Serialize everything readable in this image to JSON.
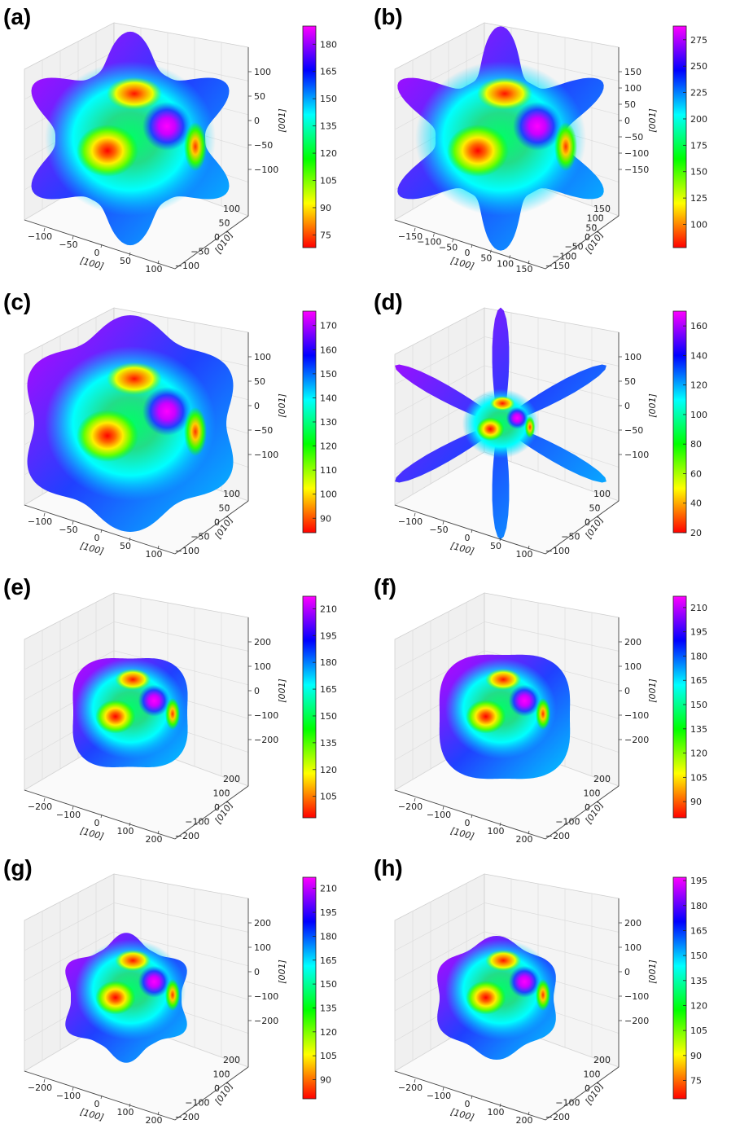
{
  "colormap": [
    "#ff0000",
    "#ffff00",
    "#00ff00",
    "#00ffff",
    "#0000ff",
    "#ff00ff"
  ],
  "chart_data": [
    {
      "label": "(a)",
      "type": "3d-surface",
      "xlabel": "[100]",
      "ylabel": "[010]",
      "zlabel": "[001]",
      "x_ticks": [
        "−100",
        "−50",
        "0",
        "50",
        "100"
      ],
      "y_ticks": [
        "−100",
        "−50",
        "0",
        "50",
        "100"
      ],
      "z_ticks": [
        "100",
        "50",
        "0",
        "−50",
        "−100"
      ],
      "colorbar_ticks": [
        "180",
        "165",
        "150",
        "135",
        "120",
        "105",
        "90",
        "75"
      ],
      "colorbar_range": [
        68,
        190
      ]
    },
    {
      "label": "(b)",
      "type": "3d-surface",
      "xlabel": "[100]",
      "ylabel": "[010]",
      "zlabel": "[001]",
      "x_ticks": [
        "−150",
        "−100",
        "−50",
        "0",
        "50",
        "100",
        "150"
      ],
      "y_ticks": [
        "−150",
        "−100",
        "−50",
        "0",
        "50",
        "100",
        "150"
      ],
      "z_ticks": [
        "150",
        "100",
        "50",
        "0",
        "−50",
        "−100",
        "−150"
      ],
      "colorbar_ticks": [
        "275",
        "250",
        "225",
        "200",
        "175",
        "150",
        "125",
        "100"
      ],
      "colorbar_range": [
        78,
        288
      ]
    },
    {
      "label": "(c)",
      "type": "3d-surface",
      "xlabel": "[100]",
      "ylabel": "[010]",
      "zlabel": "[001]",
      "x_ticks": [
        "−100",
        "−50",
        "0",
        "50",
        "100"
      ],
      "y_ticks": [
        "−100",
        "−50",
        "0",
        "50",
        "100"
      ],
      "z_ticks": [
        "100",
        "50",
        "0",
        "−50",
        "−100"
      ],
      "colorbar_ticks": [
        "170",
        "160",
        "150",
        "140",
        "130",
        "120",
        "110",
        "100",
        "90"
      ],
      "colorbar_range": [
        84,
        176
      ]
    },
    {
      "label": "(d)",
      "type": "3d-surface",
      "xlabel": "[100]",
      "ylabel": "[010]",
      "zlabel": "[001]",
      "x_ticks": [
        "−100",
        "−50",
        "0",
        "50",
        "100"
      ],
      "y_ticks": [
        "−100",
        "−50",
        "0",
        "50",
        "100"
      ],
      "z_ticks": [
        "100",
        "50",
        "0",
        "−50",
        "−100"
      ],
      "colorbar_ticks": [
        "160",
        "140",
        "120",
        "100",
        "80",
        "60",
        "40",
        "20"
      ],
      "colorbar_range": [
        20,
        170
      ]
    },
    {
      "label": "(e)",
      "type": "3d-surface",
      "xlabel": "[100]",
      "ylabel": "[010]",
      "zlabel": "[001]",
      "x_ticks": [
        "−200",
        "−100",
        "0",
        "100",
        "200"
      ],
      "y_ticks": [
        "−200",
        "−100",
        "0",
        "100",
        "200"
      ],
      "z_ticks": [
        "200",
        "100",
        "0",
        "−100",
        "−200"
      ],
      "colorbar_ticks": [
        "210",
        "195",
        "180",
        "165",
        "150",
        "135",
        "120",
        "105"
      ],
      "colorbar_range": [
        93,
        217
      ]
    },
    {
      "label": "(f)",
      "type": "3d-surface",
      "xlabel": "[100]",
      "ylabel": "[010]",
      "zlabel": "[001]",
      "x_ticks": [
        "−200",
        "−100",
        "0",
        "100",
        "200"
      ],
      "y_ticks": [
        "−200",
        "−100",
        "0",
        "100",
        "200"
      ],
      "z_ticks": [
        "200",
        "100",
        "0",
        "−100",
        "−200"
      ],
      "colorbar_ticks": [
        "210",
        "195",
        "180",
        "165",
        "150",
        "135",
        "120",
        "105",
        "90"
      ],
      "colorbar_range": [
        80,
        217
      ]
    },
    {
      "label": "(g)",
      "type": "3d-surface",
      "xlabel": "[100]",
      "ylabel": "[010]",
      "zlabel": "[001]",
      "x_ticks": [
        "−200",
        "−100",
        "0",
        "100",
        "200"
      ],
      "y_ticks": [
        "−200",
        "−100",
        "0",
        "100",
        "200"
      ],
      "z_ticks": [
        "200",
        "100",
        "0",
        "−100",
        "−200"
      ],
      "colorbar_ticks": [
        "210",
        "195",
        "180",
        "165",
        "150",
        "135",
        "120",
        "105",
        "90"
      ],
      "colorbar_range": [
        78,
        217
      ]
    },
    {
      "label": "(h)",
      "type": "3d-surface",
      "xlabel": "[100]",
      "ylabel": "[010]",
      "zlabel": "[001]",
      "x_ticks": [
        "−200",
        "−100",
        "0",
        "100",
        "200"
      ],
      "y_ticks": [
        "−200",
        "−100",
        "0",
        "100",
        "200"
      ],
      "z_ticks": [
        "200",
        "100",
        "0",
        "−100",
        "−200"
      ],
      "colorbar_ticks": [
        "195",
        "180",
        "165",
        "150",
        "135",
        "120",
        "105",
        "90",
        "75"
      ],
      "colorbar_range": [
        64,
        197
      ]
    }
  ]
}
